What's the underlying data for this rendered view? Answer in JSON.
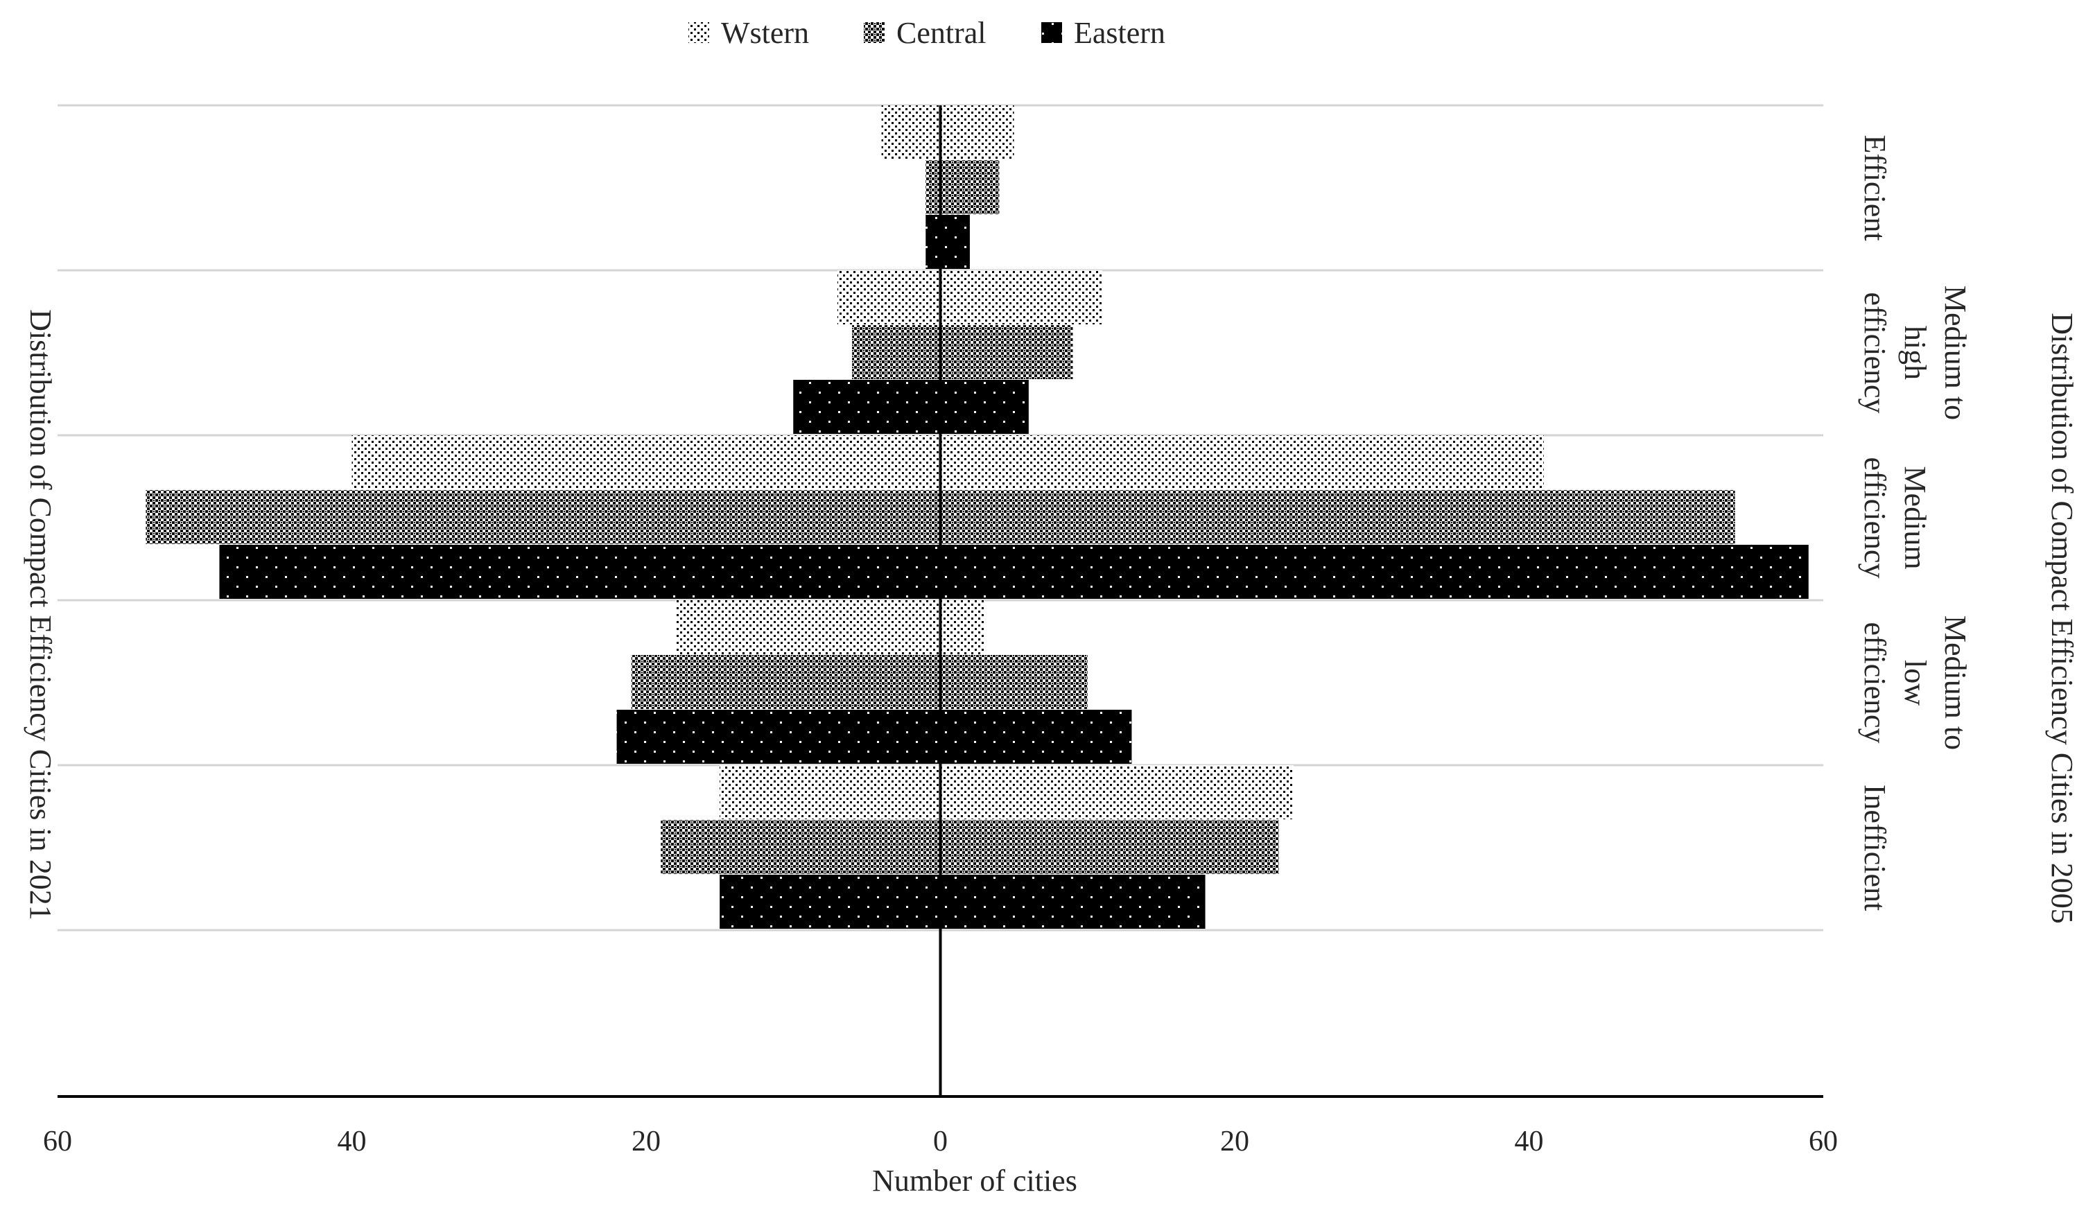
{
  "chart_data": {
    "type": "bar",
    "orientation": "horizontal-butterfly",
    "categories": [
      "Efficient",
      "Medium to high efficiency",
      "Medium efficiency",
      "Medium to low efficiency",
      "Inefficient"
    ],
    "category_label_lines": [
      [
        "Efficient"
      ],
      [
        "Medium to",
        "high",
        "efficiency"
      ],
      [
        "Medium",
        "efficiency"
      ],
      [
        "Medium to",
        "low",
        "efficiency"
      ],
      [
        "Inefficient"
      ]
    ],
    "series": [
      {
        "name": "Wstern",
        "pattern": "sparse-dots",
        "left_2021": [
          4,
          7,
          40,
          18,
          15
        ],
        "right_2005": [
          5,
          11,
          41,
          3,
          24
        ]
      },
      {
        "name": "Central",
        "pattern": "checker",
        "left_2021": [
          1,
          6,
          54,
          21,
          19
        ],
        "right_2005": [
          4,
          9,
          54,
          10,
          23
        ]
      },
      {
        "name": "Eastern",
        "pattern": "solid-black-dots",
        "left_2021": [
          1,
          10,
          49,
          22,
          15
        ],
        "right_2005": [
          2,
          6,
          59,
          13,
          18
        ]
      }
    ],
    "xlabel": "Number of cities",
    "x_tick_labels": [
      "60",
      "40",
      "20",
      "0",
      "20",
      "40",
      "60"
    ],
    "xlim": [
      -60,
      60
    ],
    "left_title": "Distribution of Compact Efficiency Cities in 2021",
    "right_title": "Distribution of Compact Efficiency Cities in 2005",
    "legend": {
      "position": "top-center",
      "entries": [
        "Wstern",
        "Central",
        "Eastern"
      ]
    },
    "grid": true
  },
  "colors": {
    "bar_fill": "#000000",
    "background": "#ffffff",
    "grid": "#d4d4d4",
    "axis": "#000000",
    "text": "#262626"
  }
}
